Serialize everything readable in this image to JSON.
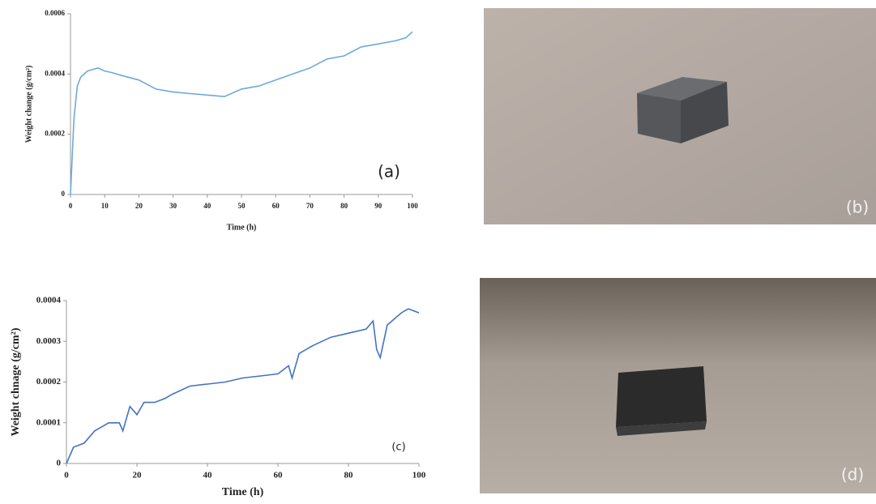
{
  "chart_data": [
    {
      "type": "line",
      "annotation": "(a)",
      "y_label": "Weight change (g/cm²)",
      "x_label": "Time (h)",
      "color": "#6fa8dc",
      "x": [
        0,
        1,
        2,
        3,
        5,
        8,
        10,
        12,
        15,
        20,
        25,
        30,
        35,
        40,
        45,
        50,
        55,
        60,
        65,
        70,
        75,
        80,
        85,
        90,
        95,
        98,
        100
      ],
      "values": [
        0,
        0.00025,
        0.00036,
        0.00039,
        0.00041,
        0.00042,
        0.00041,
        0.000405,
        0.000395,
        0.00038,
        0.00035,
        0.00034,
        0.000335,
        0.00033,
        0.000325,
        0.00035,
        0.00036,
        0.00038,
        0.0004,
        0.00042,
        0.00045,
        0.00046,
        0.00049,
        0.0005,
        0.00051,
        0.00052,
        0.00054
      ],
      "xlim": [
        0,
        100
      ],
      "xticks": [
        0,
        10,
        20,
        30,
        40,
        50,
        60,
        70,
        80,
        90,
        100
      ],
      "ylim": [
        0,
        0.0006
      ],
      "yticks": [
        0,
        0.0002,
        0.0004,
        0.0006
      ]
    },
    {
      "type": "line",
      "annotation": "(c)",
      "y_label": "Weight chnage (g/cm²)",
      "x_label": "Time  (h)",
      "color": "#4472c4",
      "x": [
        0,
        2,
        5,
        8,
        12,
        15,
        16,
        18,
        20,
        22,
        25,
        28,
        30,
        35,
        40,
        45,
        50,
        55,
        60,
        63,
        64,
        66,
        70,
        75,
        80,
        85,
        87,
        88,
        89,
        91,
        95,
        97,
        100
      ],
      "values": [
        0,
        4e-05,
        5e-05,
        8e-05,
        0.0001,
        0.0001,
        8e-05,
        0.00014,
        0.00012,
        0.00015,
        0.00015,
        0.00016,
        0.00017,
        0.00019,
        0.000195,
        0.0002,
        0.00021,
        0.000215,
        0.00022,
        0.00024,
        0.00021,
        0.00027,
        0.00029,
        0.00031,
        0.00032,
        0.00033,
        0.00035,
        0.00028,
        0.00026,
        0.00034,
        0.00037,
        0.00038,
        0.00037
      ],
      "xlim": [
        0,
        100
      ],
      "xticks": [
        0,
        20,
        40,
        60,
        80,
        100
      ],
      "ylim": [
        0,
        0.0004
      ],
      "yticks": [
        0,
        0.0001,
        0.0002,
        0.0003,
        0.0004
      ]
    }
  ],
  "photos": [
    {
      "label": "(b)"
    },
    {
      "label": "(d)"
    }
  ]
}
